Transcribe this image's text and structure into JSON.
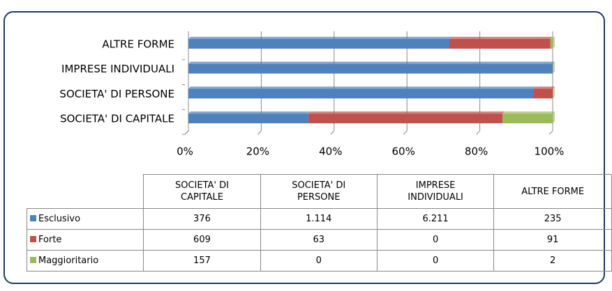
{
  "chart_data": {
    "type": "bar",
    "orientation": "horizontal",
    "stacked": "percent",
    "categories": [
      "SOCIETA' DI CAPITALE",
      "SOCIETA' DI PERSONE",
      "IMPRESE INDIVIDUALI",
      "ALTRE FORME"
    ],
    "series": [
      {
        "name": "Esclusivo",
        "color": "#4f81bd",
        "values": [
          376,
          1114,
          6211,
          235
        ],
        "value_labels": [
          "376",
          "1.114",
          "6.211",
          "235"
        ]
      },
      {
        "name": "Forte",
        "color": "#c0504d",
        "values": [
          609,
          63,
          0,
          91
        ]
      },
      {
        "name": "Maggioritario",
        "color": "#9bbb59",
        "values": [
          157,
          0,
          0,
          2
        ]
      }
    ],
    "xlim": [
      0,
      100
    ],
    "xticks": [
      {
        "value": 0,
        "label": "0%"
      },
      {
        "value": 20,
        "label": "20%"
      },
      {
        "value": 40,
        "label": "40%"
      },
      {
        "value": 60,
        "label": "60%"
      },
      {
        "value": 80,
        "label": "80%"
      },
      {
        "value": 100,
        "label": "100%"
      }
    ],
    "grid": true,
    "data_table": true
  }
}
